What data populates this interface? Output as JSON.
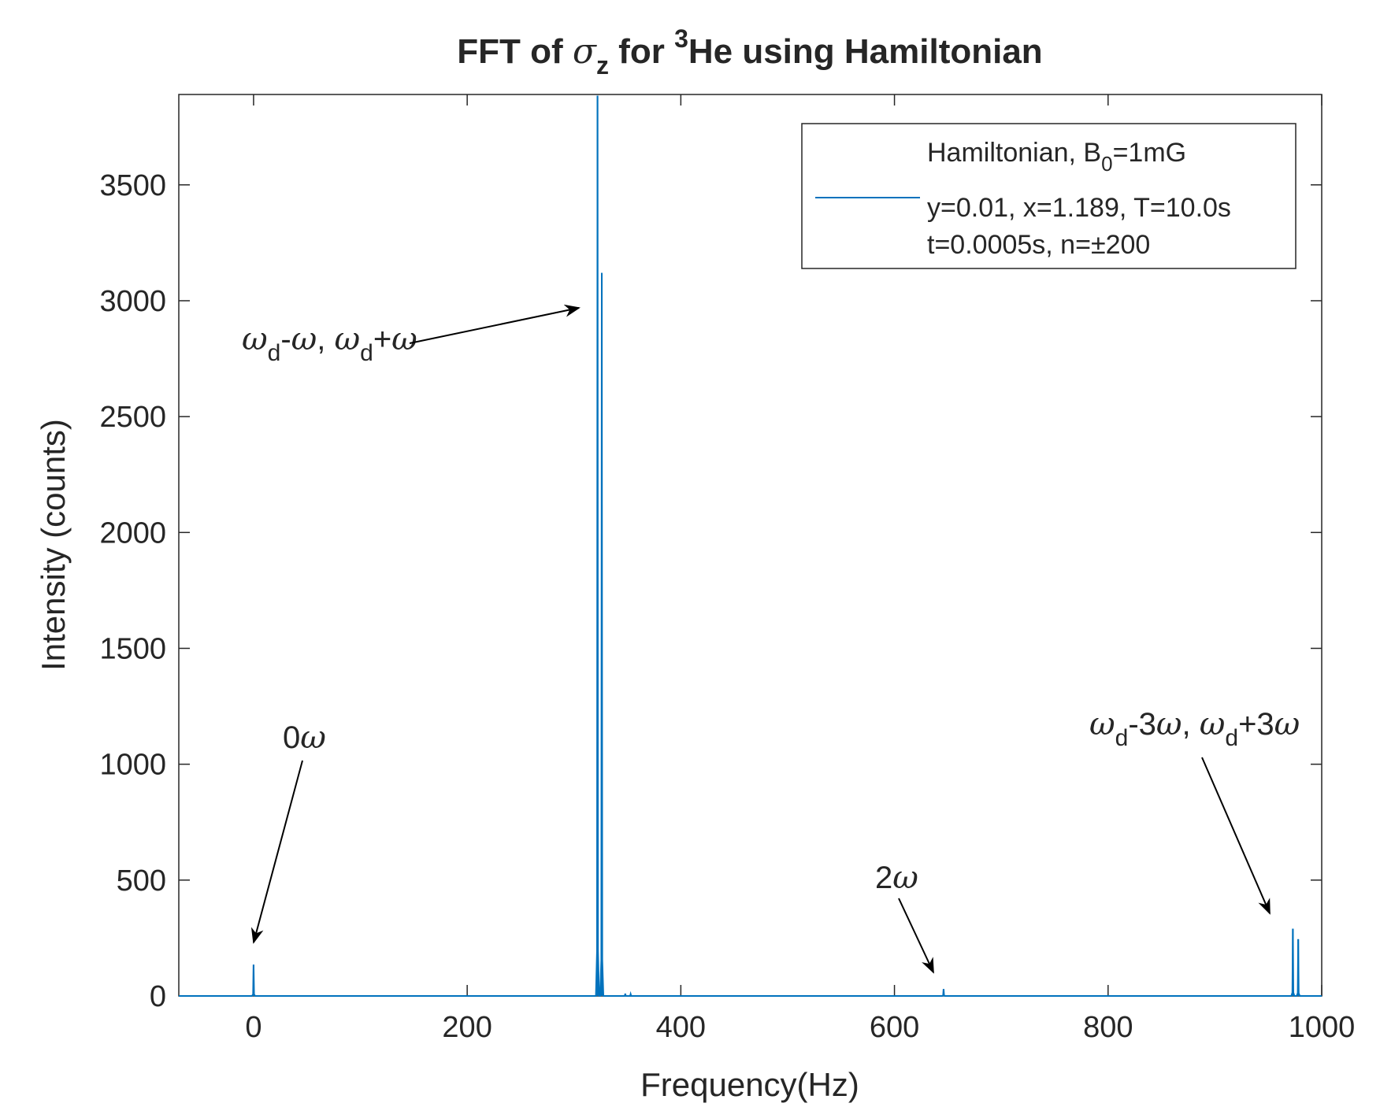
{
  "chart_data": {
    "type": "line",
    "title": {
      "prefix": "FFT of ",
      "sigma": "σ",
      "sigma_sub": "z",
      "middle": " for ",
      "sup": "3",
      "suffix": "He using Hamiltonian"
    },
    "xlabel": "Frequency(Hz)",
    "ylabel": "Intensity (counts)",
    "xlim": [
      -70,
      1000
    ],
    "ylim": [
      0,
      3890
    ],
    "xticks": [
      "0",
      "200",
      "400",
      "600",
      "800",
      "1000"
    ],
    "xtick_values": [
      0,
      200,
      400,
      600,
      800,
      1000
    ],
    "yticks": [
      "0",
      "500",
      "1000",
      "1500",
      "2000",
      "2500",
      "3000",
      "3500"
    ],
    "ytick_values": [
      0,
      500,
      1000,
      1500,
      2000,
      2500,
      3000,
      3500
    ],
    "grid": false,
    "legend_position": "top-right",
    "series_color": "#0072BD",
    "legend": {
      "line1_a": "Hamiltonian, B",
      "line1_sub": "0",
      "line1_b": "=1mG",
      "line2": "y=0.01, x=1.189, T=10.0s",
      "line3": "t=0.0005s, n=±200"
    },
    "series": [
      {
        "peaks": [
          {
            "x": 0,
            "y": 135
          },
          {
            "x": 322,
            "y": 3885
          },
          {
            "x": 326,
            "y": 3120
          },
          {
            "x": 348,
            "y": 10
          },
          {
            "x": 353,
            "y": 8
          },
          {
            "x": 646,
            "y": 30
          },
          {
            "x": 973,
            "y": 290
          },
          {
            "x": 978,
            "y": 245
          }
        ]
      }
    ],
    "annotations": {
      "a1": {
        "w": "ω",
        "d": "d",
        "dash": "-",
        "plus": "+",
        "sep": ", "
      },
      "a2": {
        "text": "0",
        "w": "ω"
      },
      "a3": {
        "text": "2",
        "w": "ω"
      },
      "a4": {
        "w": "ω",
        "d": "d",
        "m": "-3",
        "p": "+3",
        "sep": ", "
      }
    }
  }
}
